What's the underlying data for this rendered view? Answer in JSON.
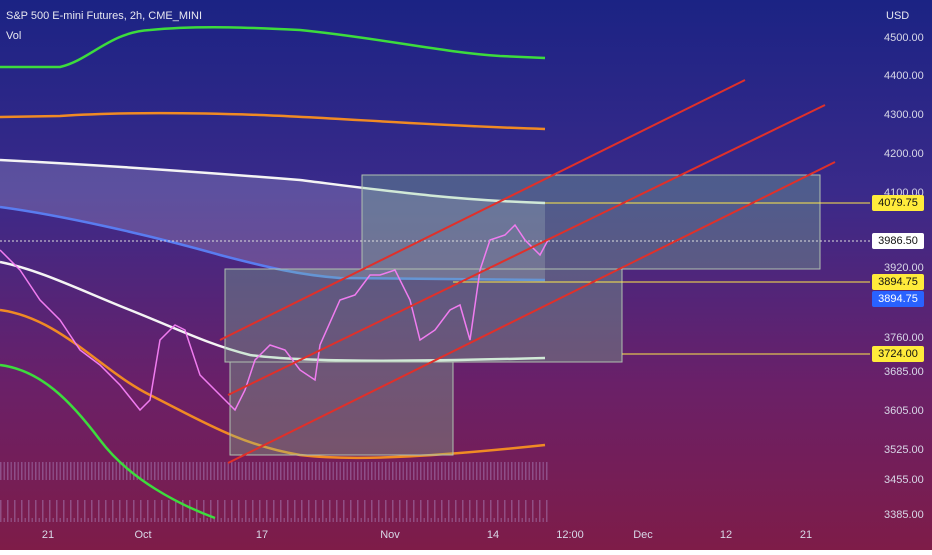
{
  "header": {
    "title": "S&P 500 E-mini Futures, 2h, CME_MINI",
    "indicator": "Vol",
    "currency": "USD"
  },
  "price_axis": [
    "4500.00",
    "4400.00",
    "4300.00",
    "4200.00",
    "4100.00",
    "3920.00",
    "3760.00",
    "3685.00",
    "3605.00",
    "3525.00",
    "3455.00",
    "3385.00"
  ],
  "time_axis": [
    "21",
    "Oct",
    "17",
    "Nov",
    "14",
    "12:00",
    "Dec",
    "12",
    "21"
  ],
  "price_tags": [
    "4079.75",
    "3986.50",
    "3894.75",
    "3894.75",
    "3724.00"
  ]
}
